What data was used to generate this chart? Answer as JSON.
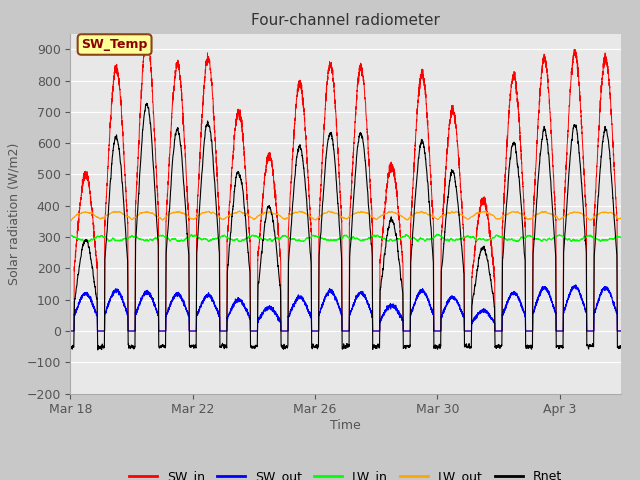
{
  "title": "Four-channel radiometer",
  "xlabel": "Time",
  "ylabel": "Solar radiation (W/m2)",
  "ylim": [
    -200,
    950
  ],
  "yticks": [
    -200,
    -100,
    0,
    100,
    200,
    300,
    400,
    500,
    600,
    700,
    800,
    900
  ],
  "colors": {
    "SW_in": "#ff0000",
    "SW_out": "#0000ff",
    "LW_in": "#00ff00",
    "LW_out": "#ffa500",
    "Rnet": "#000000"
  },
  "annotation_text": "SW_Temp",
  "annotation_box_color": "#ffff99",
  "annotation_border_color": "#8b4513",
  "x_tick_labels": [
    "Mar 18",
    "Mar 22",
    "Mar 26",
    "Mar 30",
    "Apr 3"
  ],
  "x_tick_positions": [
    0,
    4,
    8,
    12,
    16
  ],
  "num_days": 18,
  "fig_bg": "#c8c8c8",
  "plot_bg": "#e8e8e8",
  "grid_color": "#ffffff",
  "seed": 42
}
